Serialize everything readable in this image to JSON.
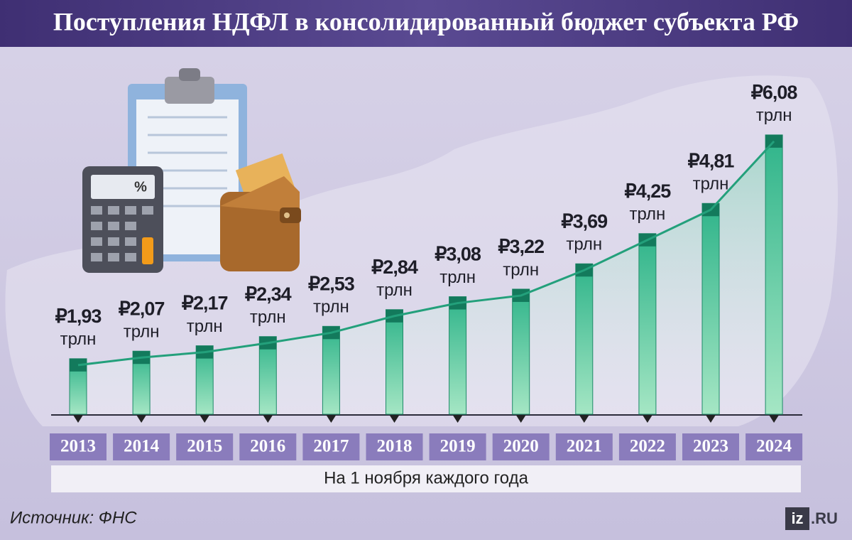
{
  "chart_data": {
    "type": "bar",
    "title": "Поступления НДФЛ в консолидированный бюджет субъекта РФ",
    "categories": [
      "2013",
      "2014",
      "2015",
      "2016",
      "2017",
      "2018",
      "2019",
      "2020",
      "2021",
      "2022",
      "2023",
      "2024"
    ],
    "values": [
      1.93,
      2.07,
      2.17,
      2.34,
      2.53,
      2.84,
      3.08,
      3.22,
      3.69,
      4.25,
      4.81,
      6.08
    ],
    "value_labels": [
      "₽1,93",
      "₽2,07",
      "₽2,17",
      "₽2,34",
      "₽2,53",
      "₽2,84",
      "₽3,08",
      "₽3,22",
      "₽3,69",
      "₽4,25",
      "₽4,81",
      "₽6,08"
    ],
    "unit": "трлн",
    "note": "На 1 ноября каждого года",
    "source": "Источник: ФНС",
    "logo": [
      "iz",
      ".RU"
    ],
    "color": "#2fb48a",
    "ylim": [
      0.9,
      6.5
    ]
  }
}
